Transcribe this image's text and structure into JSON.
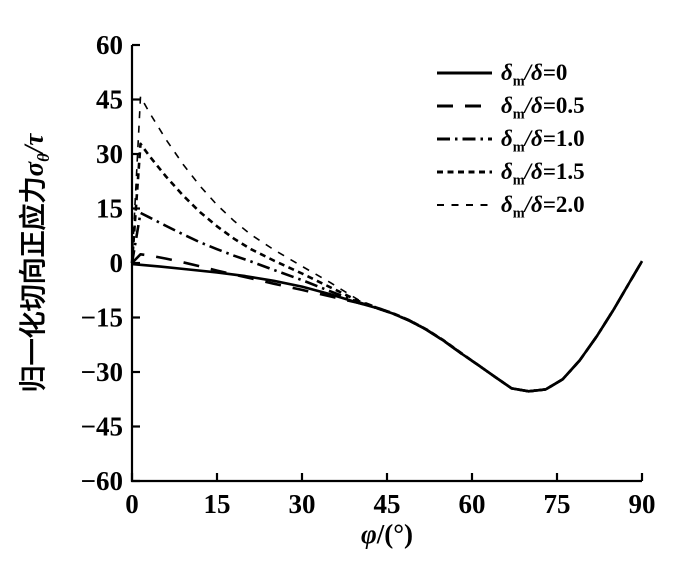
{
  "figure": {
    "background": "#ffffff",
    "ink": "#000000"
  },
  "chart_data": {
    "type": "line",
    "title": "",
    "grid": false,
    "legend_position": "top-right",
    "xlabel": {
      "sym": "φ",
      "rest": "/(°)"
    },
    "ylabel": {
      "cn": "归一化切向正应力",
      "sym": "σ",
      "sub": "θ",
      "rest": "/τ"
    },
    "x_axis": {
      "min": 0,
      "max": 90,
      "ticks": [
        0,
        15,
        30,
        45,
        60,
        75,
        90
      ]
    },
    "y_axis": {
      "min": -60,
      "max": 60,
      "ticks": [
        60,
        45,
        30,
        15,
        0,
        -15,
        -30,
        -45,
        -60
      ]
    },
    "series": [
      {
        "name": "delta-ratio-0",
        "label": {
          "sym": "δ",
          "sub": "m",
          "frac": "/δ",
          "val": "=0"
        },
        "style": "solid",
        "width": 2.6,
        "points": [
          [
            0,
            -0.3
          ],
          [
            5,
            -1.0
          ],
          [
            10,
            -1.8
          ],
          [
            15,
            -2.6
          ],
          [
            20,
            -3.6
          ],
          [
            25,
            -4.9
          ],
          [
            30,
            -6.5
          ],
          [
            35,
            -8.6
          ],
          [
            40,
            -11.0
          ],
          [
            43,
            -12.3
          ],
          [
            46,
            -13.9
          ],
          [
            49,
            -15.9
          ],
          [
            52,
            -18.4
          ],
          [
            55,
            -21.4
          ],
          [
            58,
            -24.8
          ],
          [
            61,
            -28.0
          ],
          [
            64,
            -31.3
          ],
          [
            67,
            -34.5
          ],
          [
            70,
            -35.3
          ],
          [
            73,
            -34.8
          ],
          [
            76,
            -32.0
          ],
          [
            79,
            -26.8
          ],
          [
            82,
            -20.2
          ],
          [
            85,
            -12.8
          ],
          [
            88,
            -4.8
          ],
          [
            90,
            0.5
          ]
        ]
      },
      {
        "name": "delta-ratio-0.5",
        "label": {
          "sym": "δ",
          "sub": "m",
          "frac": "/δ",
          "val": "=0.5"
        },
        "style": "long-dash",
        "width": 2.6,
        "points": [
          [
            0,
            0
          ],
          [
            1.5,
            2.4
          ],
          [
            3,
            2.1
          ],
          [
            6,
            1.2
          ],
          [
            9,
            0.2
          ],
          [
            12,
            -0.9
          ],
          [
            15,
            -2.1
          ],
          [
            18,
            -3.2
          ],
          [
            21,
            -4.2
          ],
          [
            25,
            -5.7
          ],
          [
            30,
            -7.4
          ],
          [
            35,
            -9.2
          ],
          [
            40,
            -11.0
          ],
          [
            43,
            -12.3
          ],
          [
            46,
            -13.9
          ],
          [
            49,
            -15.9
          ],
          [
            52,
            -18.4
          ],
          [
            55,
            -21.4
          ],
          [
            58,
            -24.8
          ],
          [
            61,
            -28.0
          ],
          [
            64,
            -31.3
          ],
          [
            67,
            -34.5
          ],
          [
            70,
            -35.3
          ],
          [
            73,
            -34.8
          ],
          [
            76,
            -32.0
          ],
          [
            79,
            -26.8
          ],
          [
            82,
            -20.2
          ],
          [
            85,
            -12.8
          ],
          [
            88,
            -4.8
          ],
          [
            90,
            0.5
          ]
        ]
      },
      {
        "name": "delta-ratio-1.0",
        "label": {
          "sym": "δ",
          "sub": "m",
          "frac": "/δ",
          "val": "=1.0"
        },
        "style": "dash-dot",
        "width": 2.6,
        "points": [
          [
            0,
            0
          ],
          [
            1.5,
            13.8
          ],
          [
            3,
            12.6
          ],
          [
            6,
            10.2
          ],
          [
            9,
            7.9
          ],
          [
            12,
            5.7
          ],
          [
            15,
            3.8
          ],
          [
            18,
            2.0
          ],
          [
            21,
            0.4
          ],
          [
            25,
            -1.9
          ],
          [
            30,
            -4.7
          ],
          [
            35,
            -7.8
          ],
          [
            40,
            -10.8
          ],
          [
            43,
            -12.3
          ],
          [
            46,
            -13.9
          ],
          [
            49,
            -15.9
          ],
          [
            52,
            -18.4
          ],
          [
            55,
            -21.4
          ],
          [
            58,
            -24.8
          ],
          [
            61,
            -28.0
          ],
          [
            64,
            -31.3
          ],
          [
            67,
            -34.5
          ],
          [
            70,
            -35.3
          ],
          [
            73,
            -34.8
          ],
          [
            76,
            -32.0
          ],
          [
            79,
            -26.8
          ],
          [
            82,
            -20.2
          ],
          [
            85,
            -12.8
          ],
          [
            88,
            -4.8
          ],
          [
            90,
            0.5
          ]
        ]
      },
      {
        "name": "delta-ratio-1.5",
        "label": {
          "sym": "δ",
          "sub": "m",
          "frac": "/δ",
          "val": "=1.5"
        },
        "style": "dense-dash",
        "width": 2.6,
        "points": [
          [
            0,
            0
          ],
          [
            1.5,
            32.8
          ],
          [
            3,
            29.6
          ],
          [
            6,
            23.8
          ],
          [
            9,
            18.6
          ],
          [
            12,
            14.0
          ],
          [
            15,
            10.1
          ],
          [
            18,
            6.7
          ],
          [
            21,
            3.8
          ],
          [
            25,
            0.7
          ],
          [
            30,
            -2.9
          ],
          [
            35,
            -6.7
          ],
          [
            40,
            -10.5
          ],
          [
            43,
            -12.2
          ],
          [
            46,
            -13.8
          ],
          [
            49,
            -15.8
          ],
          [
            52,
            -18.3
          ],
          [
            55,
            -21.3
          ],
          [
            58,
            -24.7
          ],
          [
            61,
            -28.0
          ],
          [
            64,
            -31.3
          ],
          [
            67,
            -34.5
          ],
          [
            70,
            -35.3
          ],
          [
            73,
            -34.8
          ],
          [
            76,
            -32.0
          ],
          [
            79,
            -26.8
          ],
          [
            82,
            -20.2
          ],
          [
            85,
            -12.8
          ],
          [
            88,
            -4.8
          ],
          [
            90,
            0.5
          ]
        ]
      },
      {
        "name": "delta-ratio-2.0",
        "label": {
          "sym": "δ",
          "sub": "m",
          "frac": "/δ",
          "val": "=2.0"
        },
        "style": "sparse-dash",
        "width": 1.6,
        "points": [
          [
            0,
            0
          ],
          [
            1.5,
            45.8
          ],
          [
            3,
            41.6
          ],
          [
            6,
            34.0
          ],
          [
            9,
            27.2
          ],
          [
            12,
            21.2
          ],
          [
            15,
            16.0
          ],
          [
            18,
            11.6
          ],
          [
            21,
            7.8
          ],
          [
            25,
            3.7
          ],
          [
            30,
            -0.9
          ],
          [
            35,
            -5.4
          ],
          [
            40,
            -10.2
          ],
          [
            43,
            -12.0
          ],
          [
            46,
            -13.7
          ],
          [
            49,
            -15.7
          ],
          [
            52,
            -18.2
          ],
          [
            55,
            -21.2
          ],
          [
            58,
            -24.6
          ],
          [
            61,
            -27.9
          ],
          [
            64,
            -31.2
          ],
          [
            67,
            -34.4
          ],
          [
            70,
            -35.2
          ],
          [
            73,
            -34.7
          ],
          [
            76,
            -31.9
          ],
          [
            79,
            -26.8
          ],
          [
            82,
            -20.2
          ],
          [
            85,
            -12.8
          ],
          [
            88,
            -4.8
          ],
          [
            90,
            0.5
          ]
        ]
      }
    ]
  }
}
